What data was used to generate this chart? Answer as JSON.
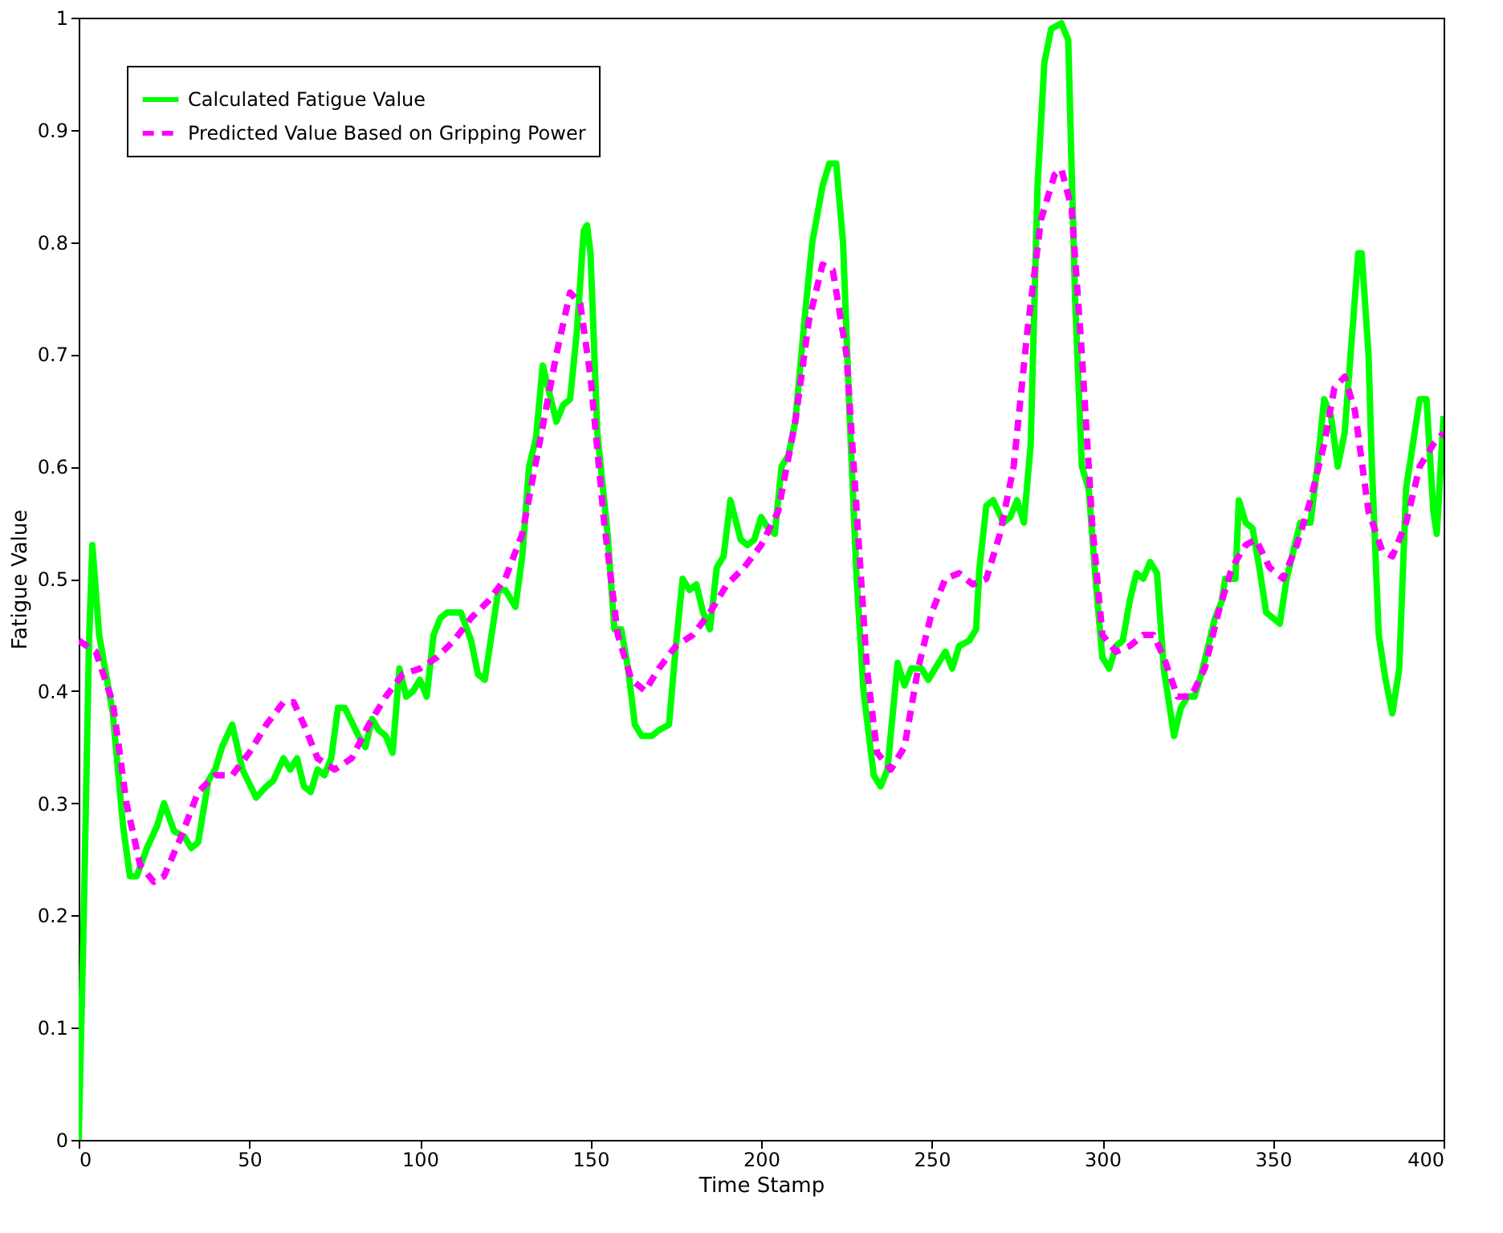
{
  "chart_data": {
    "type": "line",
    "xlabel": "Time Stamp",
    "ylabel": "Fatigue Value",
    "xlim": [
      0,
      400
    ],
    "xticks": [
      0,
      50,
      100,
      150,
      200,
      250,
      300,
      350,
      400
    ],
    "ylim": [
      0,
      1
    ],
    "yticks": [
      0,
      0.1,
      0.2,
      0.3,
      0.4,
      0.5,
      0.6,
      0.7,
      0.8,
      0.9,
      1
    ],
    "grid": false,
    "legend": "top left",
    "marker": "none",
    "series": [
      {
        "name": "Calculated Fatigue Value",
        "color": "#00ff00",
        "line_style": "solid",
        "x": [
          0,
          1.5,
          3,
          4,
          6,
          10,
          13,
          15,
          17,
          20,
          23,
          25,
          28,
          31,
          33,
          35,
          38,
          40,
          42,
          45,
          48,
          52,
          55,
          57,
          60,
          62,
          64,
          66,
          68,
          70,
          72,
          74,
          76,
          78,
          82,
          84,
          86,
          88,
          90,
          92,
          94,
          96,
          98,
          100,
          102,
          104,
          106,
          108,
          110,
          112,
          115,
          117,
          119,
          121,
          123,
          125,
          128,
          130,
          132,
          134,
          136,
          138,
          140,
          142,
          144,
          146,
          148,
          149,
          150,
          152,
          155,
          157,
          159,
          161,
          163,
          165,
          168,
          170,
          173,
          175,
          177,
          179,
          181,
          183,
          185,
          187,
          189,
          191,
          194,
          196,
          198,
          200,
          202,
          204,
          206,
          208,
          210,
          213,
          215,
          218,
          220,
          222,
          224,
          226,
          228,
          230,
          233,
          235,
          237,
          240,
          242,
          244,
          247,
          249,
          252,
          254,
          256,
          258,
          261,
          263,
          264,
          266,
          268,
          271,
          273,
          275,
          277,
          279,
          281,
          283,
          285,
          288,
          290,
          292,
          294,
          296,
          298,
          300,
          302,
          304,
          306,
          308,
          310,
          312,
          314,
          316,
          318,
          321,
          323,
          325,
          327,
          329,
          331,
          333,
          335,
          336,
          339,
          340,
          342,
          344,
          346,
          348,
          350,
          352,
          354,
          356,
          358,
          361,
          363,
          365,
          367,
          369,
          371,
          373,
          375,
          376,
          378,
          379,
          381,
          383,
          385,
          387,
          389,
          391,
          393,
          395,
          397,
          398,
          400
        ],
        "values": [
          0,
          0.2,
          0.44,
          0.53,
          0.45,
          0.38,
          0.28,
          0.235,
          0.235,
          0.26,
          0.28,
          0.3,
          0.275,
          0.27,
          0.26,
          0.265,
          0.32,
          0.33,
          0.35,
          0.37,
          0.33,
          0.305,
          0.315,
          0.32,
          0.34,
          0.33,
          0.34,
          0.315,
          0.31,
          0.33,
          0.325,
          0.34,
          0.385,
          0.385,
          0.36,
          0.35,
          0.375,
          0.365,
          0.36,
          0.345,
          0.42,
          0.395,
          0.4,
          0.41,
          0.395,
          0.45,
          0.465,
          0.47,
          0.47,
          0.47,
          0.445,
          0.415,
          0.41,
          0.45,
          0.49,
          0.49,
          0.475,
          0.52,
          0.6,
          0.625,
          0.69,
          0.665,
          0.64,
          0.655,
          0.66,
          0.72,
          0.81,
          0.815,
          0.79,
          0.63,
          0.54,
          0.455,
          0.455,
          0.42,
          0.37,
          0.36,
          0.36,
          0.365,
          0.37,
          0.44,
          0.5,
          0.49,
          0.495,
          0.47,
          0.455,
          0.51,
          0.52,
          0.57,
          0.535,
          0.53,
          0.535,
          0.555,
          0.545,
          0.54,
          0.6,
          0.61,
          0.64,
          0.74,
          0.8,
          0.85,
          0.87,
          0.87,
          0.8,
          0.64,
          0.5,
          0.4,
          0.325,
          0.315,
          0.33,
          0.425,
          0.405,
          0.42,
          0.42,
          0.41,
          0.425,
          0.435,
          0.42,
          0.44,
          0.445,
          0.455,
          0.51,
          0.565,
          0.57,
          0.55,
          0.555,
          0.57,
          0.55,
          0.62,
          0.85,
          0.96,
          0.99,
          0.995,
          0.98,
          0.75,
          0.6,
          0.58,
          0.5,
          0.43,
          0.42,
          0.44,
          0.445,
          0.48,
          0.505,
          0.5,
          0.515,
          0.505,
          0.42,
          0.36,
          0.385,
          0.395,
          0.395,
          0.415,
          0.44,
          0.465,
          0.48,
          0.5,
          0.5,
          0.57,
          0.55,
          0.545,
          0.51,
          0.47,
          0.465,
          0.46,
          0.5,
          0.525,
          0.55,
          0.55,
          0.6,
          0.66,
          0.645,
          0.6,
          0.63,
          0.71,
          0.79,
          0.79,
          0.7,
          0.6,
          0.45,
          0.41,
          0.38,
          0.42,
          0.58,
          0.62,
          0.66,
          0.66,
          0.56,
          0.54,
          0.645
        ]
      },
      {
        "name": "Predicted Value Based on Gripping Power",
        "color": "#ff00ff",
        "line_style": "dashed",
        "x": [
          0,
          5,
          10,
          14,
          18,
          22,
          25,
          30,
          35,
          40,
          45,
          50,
          55,
          60,
          63,
          66,
          70,
          75,
          80,
          85,
          90,
          95,
          100,
          105,
          110,
          115,
          120,
          125,
          130,
          135,
          140,
          144,
          147,
          150,
          154,
          158,
          162,
          166,
          170,
          175,
          180,
          185,
          190,
          195,
          200,
          205,
          210,
          214,
          218,
          221,
          225,
          228,
          231,
          234,
          238,
          242,
          246,
          250,
          254,
          258,
          262,
          266,
          270,
          274,
          278,
          282,
          286,
          288,
          291,
          294,
          297,
          300,
          304,
          308,
          312,
          315,
          318,
          322,
          326,
          330,
          334,
          338,
          342,
          345,
          349,
          353,
          357,
          361,
          365,
          368,
          371,
          374,
          378,
          382,
          385,
          389,
          393,
          397,
          400
        ],
        "values": [
          0.445,
          0.435,
          0.39,
          0.3,
          0.245,
          0.23,
          0.235,
          0.27,
          0.31,
          0.325,
          0.325,
          0.345,
          0.37,
          0.39,
          0.39,
          0.37,
          0.34,
          0.33,
          0.34,
          0.37,
          0.395,
          0.415,
          0.42,
          0.43,
          0.445,
          0.465,
          0.48,
          0.5,
          0.54,
          0.62,
          0.7,
          0.755,
          0.745,
          0.68,
          0.55,
          0.45,
          0.41,
          0.4,
          0.42,
          0.44,
          0.45,
          0.47,
          0.495,
          0.51,
          0.53,
          0.56,
          0.64,
          0.73,
          0.78,
          0.775,
          0.7,
          0.56,
          0.42,
          0.345,
          0.33,
          0.35,
          0.42,
          0.47,
          0.5,
          0.505,
          0.495,
          0.5,
          0.54,
          0.6,
          0.72,
          0.82,
          0.86,
          0.865,
          0.83,
          0.7,
          0.55,
          0.45,
          0.435,
          0.44,
          0.45,
          0.45,
          0.43,
          0.395,
          0.395,
          0.42,
          0.47,
          0.51,
          0.53,
          0.535,
          0.51,
          0.5,
          0.53,
          0.57,
          0.62,
          0.67,
          0.68,
          0.65,
          0.56,
          0.525,
          0.52,
          0.55,
          0.6,
          0.62,
          0.63
        ]
      }
    ]
  }
}
